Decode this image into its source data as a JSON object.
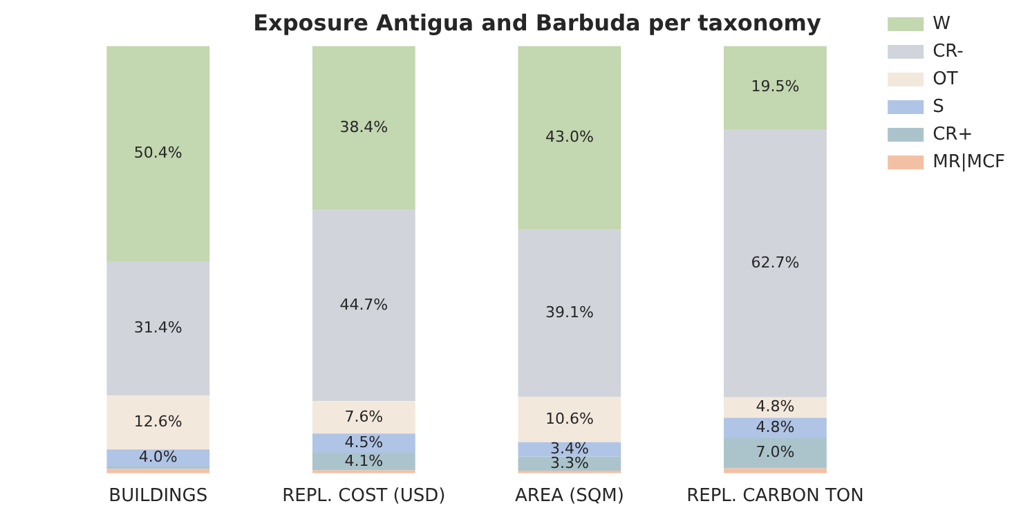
{
  "chart_data": {
    "type": "bar",
    "title": "Exposure Antigua and Barbuda per taxonomy",
    "categories": [
      "BUILDINGS",
      "REPL. COST (USD)",
      "AREA (SQM)",
      "REPL. CARBON TON"
    ],
    "stacked": true,
    "ylim": [
      0,
      100
    ],
    "tick_labels": "x",
    "legend": "top right",
    "grid": false,
    "series": [
      {
        "name": "MR|MCF",
        "color": "#f4c0a4",
        "values": [
          1.0,
          0.7,
          0.6,
          1.2
        ],
        "value_labels": [
          null,
          null,
          null,
          null
        ]
      },
      {
        "name": "CR+",
        "color": "#abc4cc",
        "values": [
          0.6,
          4.1,
          3.3,
          7.0
        ],
        "value_labels": [
          null,
          "4.1%",
          "3.3%",
          "7.0%"
        ]
      },
      {
        "name": "S",
        "color": "#b0c4e6",
        "values": [
          4.0,
          4.5,
          3.4,
          4.8
        ],
        "value_labels": [
          "4.0%",
          "4.5%",
          "3.4%",
          "4.8%"
        ]
      },
      {
        "name": "OT",
        "color": "#f3e8dc",
        "values": [
          12.6,
          7.6,
          10.6,
          4.8
        ],
        "value_labels": [
          "12.6%",
          "7.6%",
          "10.6%",
          "4.8%"
        ]
      },
      {
        "name": "CR-",
        "color": "#d1d4db",
        "values": [
          31.4,
          44.7,
          39.1,
          62.7
        ],
        "value_labels": [
          "31.4%",
          "44.7%",
          "39.1%",
          "62.7%"
        ]
      },
      {
        "name": "W",
        "color": "#c3d7b0",
        "values": [
          50.4,
          38.4,
          43.0,
          19.5
        ],
        "value_labels": [
          "50.4%",
          "38.4%",
          "43.0%",
          "19.5%"
        ]
      }
    ]
  }
}
